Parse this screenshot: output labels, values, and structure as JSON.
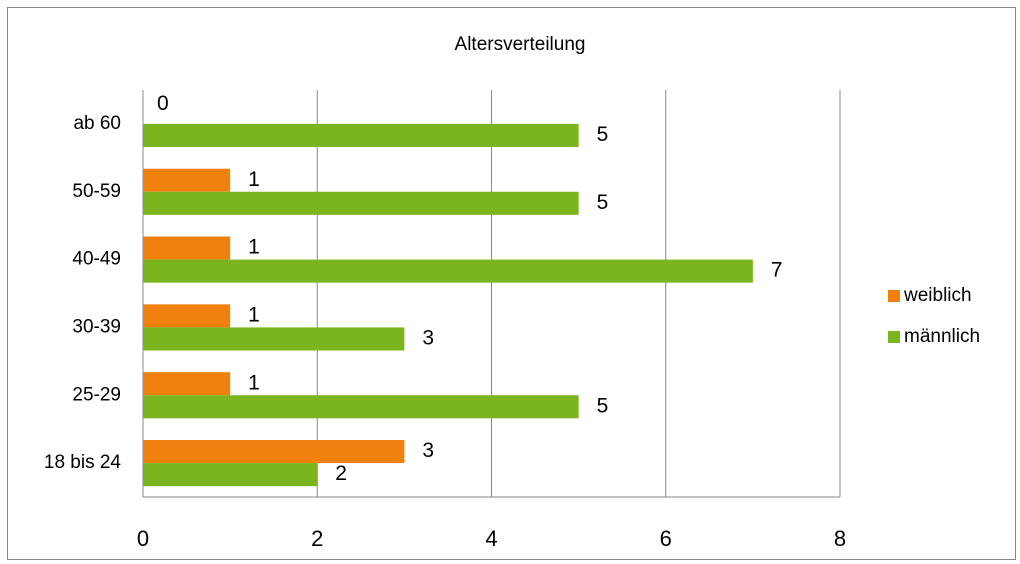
{
  "chart_data": {
    "type": "hbar",
    "title": "Altersverteilung",
    "categories": [
      "18 bis 24",
      "25-29",
      "30-39",
      "40-49",
      "50-59",
      "ab 60"
    ],
    "series": [
      {
        "name": "weiblich",
        "color": "#f0810f",
        "values": [
          3,
          1,
          1,
          1,
          1,
          0
        ]
      },
      {
        "name": "männlich",
        "color": "#7ab41e",
        "values": [
          2,
          5,
          3,
          7,
          5,
          5
        ]
      }
    ],
    "xlim": [
      0,
      8
    ],
    "xticks": [
      0,
      2,
      4,
      6,
      8
    ],
    "grid": true,
    "legend": "right"
  }
}
